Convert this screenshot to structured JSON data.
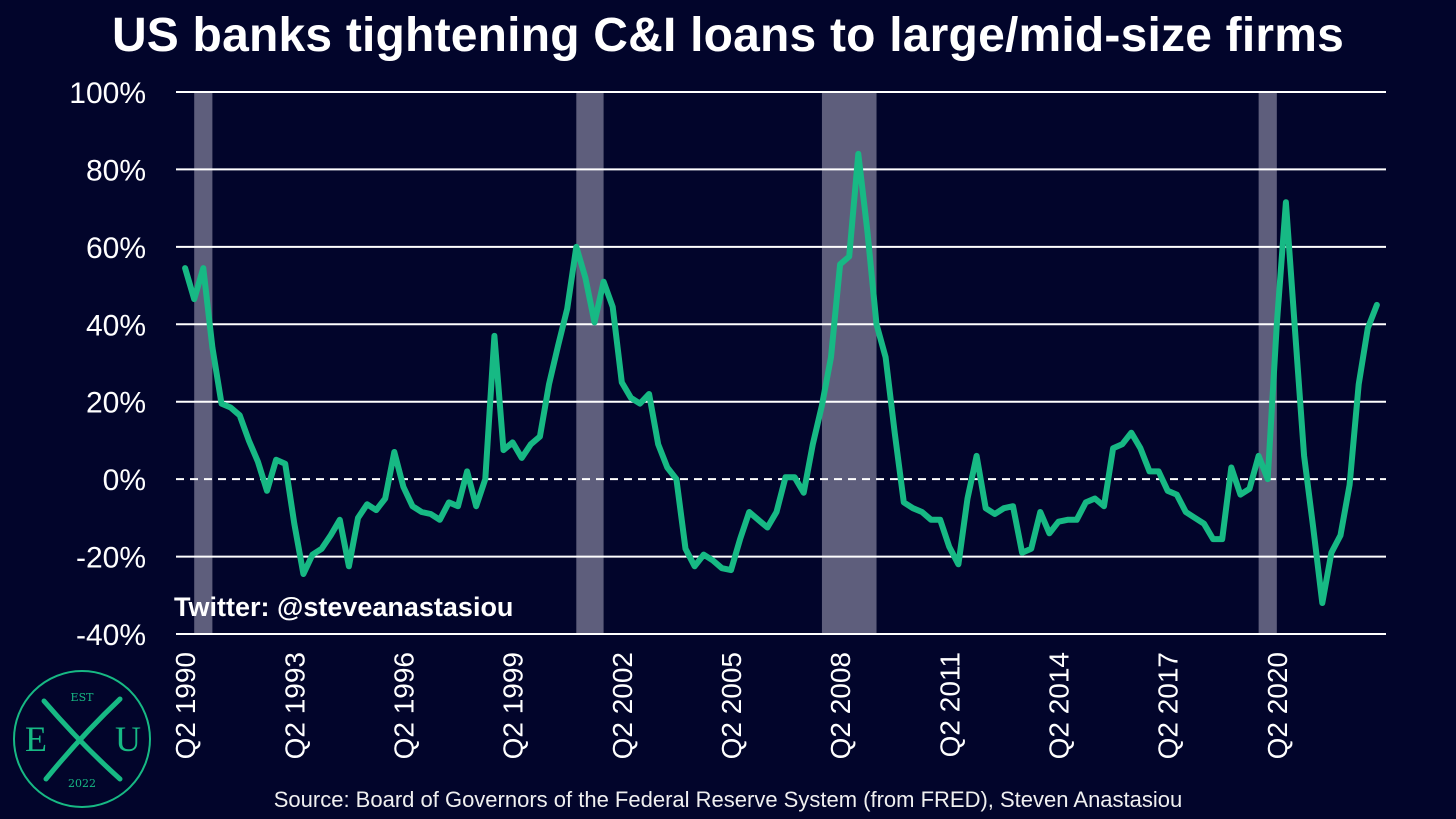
{
  "chart_data": {
    "type": "line",
    "title": "US banks tightening C&I loans to large/mid-size firms",
    "xlabel": "",
    "ylabel": "",
    "ylim": [
      -40,
      100
    ],
    "y_ticks": [
      "100%",
      "80%",
      "60%",
      "40%",
      "20%",
      "0%",
      "-20%",
      "-40%"
    ],
    "y_tick_values": [
      100,
      80,
      60,
      40,
      20,
      0,
      -20,
      -40
    ],
    "x_ticks": [
      "Q2 1990",
      "Q2 1993",
      "Q2 1996",
      "Q2 1999",
      "Q2 2002",
      "Q2 2005",
      "Q2 2008",
      "Q2 2011",
      "Q2 2014",
      "Q2 2017",
      "Q2 2020"
    ],
    "grid": true,
    "zero_line_dashed": true,
    "line_color": "#17b984",
    "recession_color": "#5e5e7c",
    "recessions": [
      {
        "start": 1990.5,
        "end": 1991.0
      },
      {
        "start": 2001.0,
        "end": 2001.75
      },
      {
        "start": 2007.75,
        "end": 2009.25
      },
      {
        "start": 2019.75,
        "end": 2020.25
      }
    ],
    "series": [
      {
        "values": [
          [
            1990.25,
            54.5
          ],
          [
            1990.5,
            46.5
          ],
          [
            1990.75,
            54.5
          ],
          [
            1991.0,
            34.0
          ],
          [
            1991.25,
            19.5
          ],
          [
            1991.5,
            18.5
          ],
          [
            1991.75,
            16.5
          ],
          [
            1992.0,
            10.0
          ],
          [
            1992.25,
            4.5
          ],
          [
            1992.5,
            -3.0
          ],
          [
            1992.75,
            5.0
          ],
          [
            1993.0,
            4.0
          ],
          [
            1993.25,
            -11.5
          ],
          [
            1993.5,
            -24.5
          ],
          [
            1993.75,
            -19.5
          ],
          [
            1994.0,
            -18.0
          ],
          [
            1994.25,
            -14.5
          ],
          [
            1994.5,
            -10.5
          ],
          [
            1994.75,
            -22.5
          ],
          [
            1995.0,
            -10.0
          ],
          [
            1995.25,
            -6.5
          ],
          [
            1995.5,
            -8.0
          ],
          [
            1995.75,
            -5.0
          ],
          [
            1996.0,
            7.0
          ],
          [
            1996.25,
            -2.0
          ],
          [
            1996.5,
            -7.0
          ],
          [
            1996.75,
            -8.5
          ],
          [
            1997.0,
            -9.0
          ],
          [
            1997.25,
            -10.5
          ],
          [
            1997.5,
            -6.0
          ],
          [
            1997.75,
            -7.0
          ],
          [
            1998.0,
            2.0
          ],
          [
            1998.25,
            -7.0
          ],
          [
            1998.5,
            0.0
          ],
          [
            1998.75,
            37.0
          ],
          [
            1999.0,
            7.5
          ],
          [
            1999.25,
            9.5
          ],
          [
            1999.5,
            5.5
          ],
          [
            1999.75,
            9.0
          ],
          [
            2000.0,
            11.0
          ],
          [
            2000.25,
            24.5
          ],
          [
            2000.5,
            34.5
          ],
          [
            2000.75,
            44.0
          ],
          [
            2001.0,
            60.0
          ],
          [
            2001.25,
            52.0
          ],
          [
            2001.5,
            40.5
          ],
          [
            2001.75,
            51.0
          ],
          [
            2002.0,
            44.5
          ],
          [
            2002.25,
            25.0
          ],
          [
            2002.5,
            21.0
          ],
          [
            2002.75,
            19.5
          ],
          [
            2003.0,
            22.0
          ],
          [
            2003.25,
            9.0
          ],
          [
            2003.5,
            3.0
          ],
          [
            2003.75,
            0.0
          ],
          [
            2004.0,
            -18.0
          ],
          [
            2004.25,
            -22.5
          ],
          [
            2004.5,
            -19.5
          ],
          [
            2004.75,
            -21.0
          ],
          [
            2005.0,
            -23.0
          ],
          [
            2005.25,
            -23.5
          ],
          [
            2005.5,
            -15.5
          ],
          [
            2005.75,
            -8.5
          ],
          [
            2006.0,
            -10.5
          ],
          [
            2006.25,
            -12.5
          ],
          [
            2006.5,
            -8.5
          ],
          [
            2006.75,
            0.5
          ],
          [
            2007.0,
            0.5
          ],
          [
            2007.25,
            -3.5
          ],
          [
            2007.5,
            9.0
          ],
          [
            2007.75,
            19.0
          ],
          [
            2008.0,
            31.5
          ],
          [
            2008.25,
            55.5
          ],
          [
            2008.5,
            57.5
          ],
          [
            2008.75,
            84.0
          ],
          [
            2009.0,
            64.0
          ],
          [
            2009.25,
            40.0
          ],
          [
            2009.5,
            31.5
          ],
          [
            2009.75,
            12.0
          ],
          [
            2010.0,
            -6.0
          ],
          [
            2010.25,
            -7.5
          ],
          [
            2010.5,
            -8.5
          ],
          [
            2010.75,
            -10.5
          ],
          [
            2011.0,
            -10.5
          ],
          [
            2011.25,
            -17.5
          ],
          [
            2011.5,
            -22.0
          ],
          [
            2011.75,
            -5.0
          ],
          [
            2012.0,
            6.0
          ],
          [
            2012.25,
            -7.5
          ],
          [
            2012.5,
            -9.0
          ],
          [
            2012.75,
            -7.5
          ],
          [
            2013.0,
            -7.0
          ],
          [
            2013.25,
            -19.0
          ],
          [
            2013.5,
            -18.0
          ],
          [
            2013.75,
            -8.5
          ],
          [
            2014.0,
            -14.0
          ],
          [
            2014.25,
            -11.0
          ],
          [
            2014.5,
            -10.5
          ],
          [
            2014.75,
            -10.5
          ],
          [
            2015.0,
            -6.0
          ],
          [
            2015.25,
            -5.0
          ],
          [
            2015.5,
            -7.0
          ],
          [
            2015.75,
            8.0
          ],
          [
            2016.0,
            9.0
          ],
          [
            2016.25,
            12.0
          ],
          [
            2016.5,
            8.0
          ],
          [
            2016.75,
            2.0
          ],
          [
            2017.0,
            2.0
          ],
          [
            2017.25,
            -3.0
          ],
          [
            2017.5,
            -4.0
          ],
          [
            2017.75,
            -8.5
          ],
          [
            2018.0,
            -10.0
          ],
          [
            2018.25,
            -11.5
          ],
          [
            2018.5,
            -15.5
          ],
          [
            2018.75,
            -15.5
          ],
          [
            2019.0,
            3.0
          ],
          [
            2019.25,
            -4.0
          ],
          [
            2019.5,
            -2.5
          ],
          [
            2019.75,
            6.0
          ],
          [
            2020.0,
            0.0
          ],
          [
            2020.25,
            40.0
          ],
          [
            2020.5,
            71.5
          ],
          [
            2020.75,
            38.5
          ],
          [
            2021.0,
            6.0
          ],
          [
            2021.25,
            -12.5
          ],
          [
            2021.5,
            -32.0
          ],
          [
            2021.75,
            -19.0
          ],
          [
            2022.0,
            -14.5
          ],
          [
            2022.25,
            -1.5
          ],
          [
            2022.5,
            24.5
          ],
          [
            2022.75,
            39.0
          ],
          [
            2023.0,
            45.0
          ]
        ]
      }
    ]
  },
  "annotations": {
    "twitter": "Twitter: @steveanastasiou",
    "source": "Source: Board of Governors of the Federal Reserve System (from FRED), Steven Anastasiou"
  },
  "logo": {
    "top": "EST",
    "left": "E",
    "right": "U",
    "bottom": "2022",
    "color": "#17b984"
  }
}
